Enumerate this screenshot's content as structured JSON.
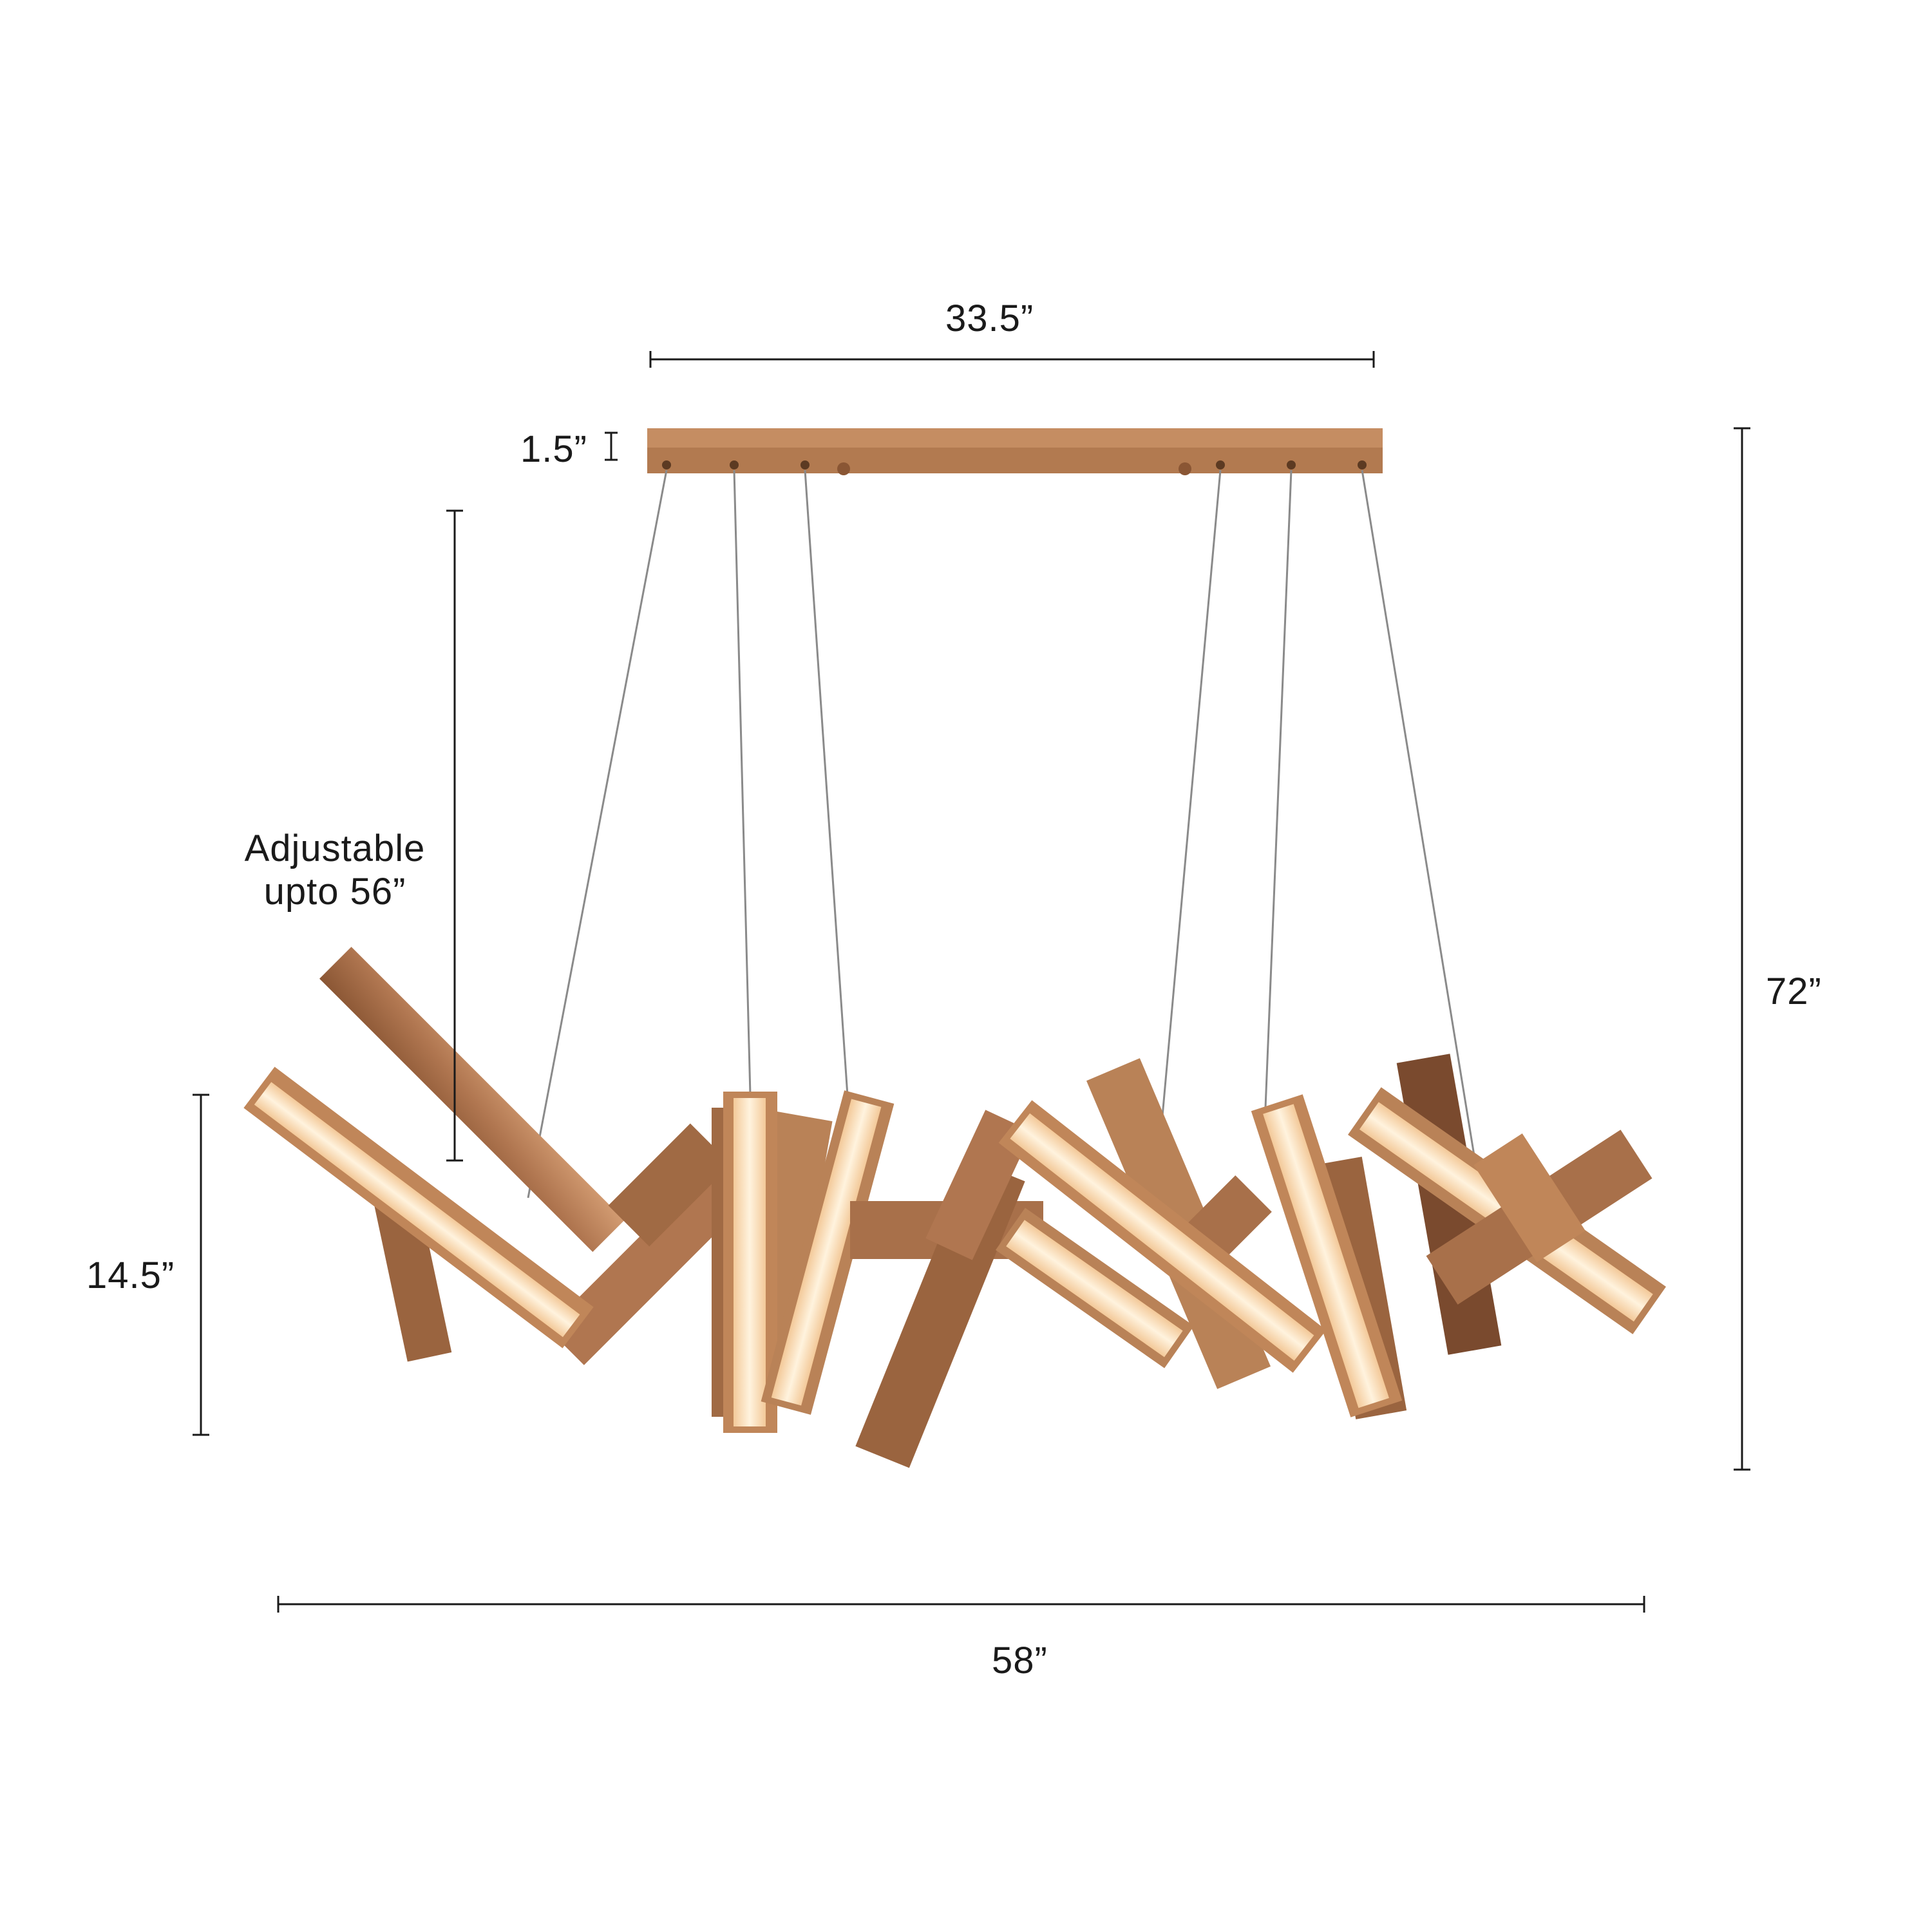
{
  "colors": {
    "background": "#ffffff",
    "dimension_line": "#1a1a1a",
    "bronze_light": "#c9936a",
    "bronze_mid": "#a8704a",
    "bronze_dark": "#7a4a2e",
    "diffuser": "#fbe6c8",
    "cable": "#8a8a8a"
  },
  "dimensions": {
    "canopy_width": "33.5”",
    "canopy_height": "1.5”",
    "adjustable_line1": "Adjustable",
    "adjustable_line2": "upto 56”",
    "overall_height": "72”",
    "fixture_height": "14.5”",
    "overall_width": "58”"
  },
  "icons": {
    "dimension_arrows": "dimension-line-icon",
    "product": "linear-bar-chandelier-icon"
  }
}
